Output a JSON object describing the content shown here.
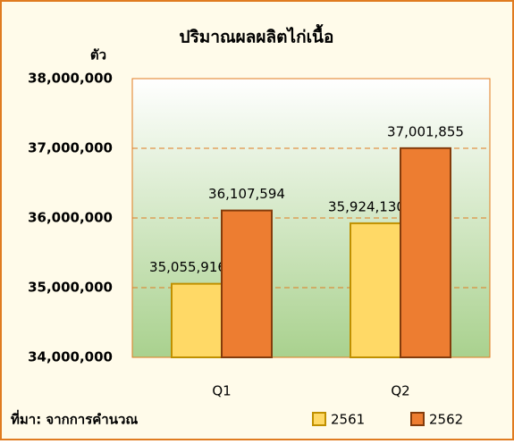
{
  "chart_data": {
    "type": "bar",
    "title": "ปริมาณผลผลิตไก่เนื้อ",
    "y_label": "ตัว",
    "source": "ที่มา: จากการคำนวณ",
    "categories": [
      "Q1",
      "Q2"
    ],
    "series": [
      {
        "name": "2561",
        "color": "#ffd966",
        "values": [
          35055916,
          35924130
        ],
        "value_labels": [
          "35,055,916",
          "35,924,130"
        ]
      },
      {
        "name": "2562",
        "color": "#ed7d31",
        "values": [
          36107594,
          37001855
        ],
        "value_labels": [
          "36,107,594",
          "37,001,855"
        ]
      }
    ],
    "ylim": [
      34000000,
      38000000
    ],
    "yticks": [
      {
        "value": 34000000,
        "label": "34,000,000"
      },
      {
        "value": 35000000,
        "label": "35,000,000"
      },
      {
        "value": 36000000,
        "label": "36,000,000"
      },
      {
        "value": 37000000,
        "label": "37,000,000"
      },
      {
        "value": 38000000,
        "label": "38,000,000"
      }
    ],
    "grid": true,
    "legend": "bottom-right"
  }
}
